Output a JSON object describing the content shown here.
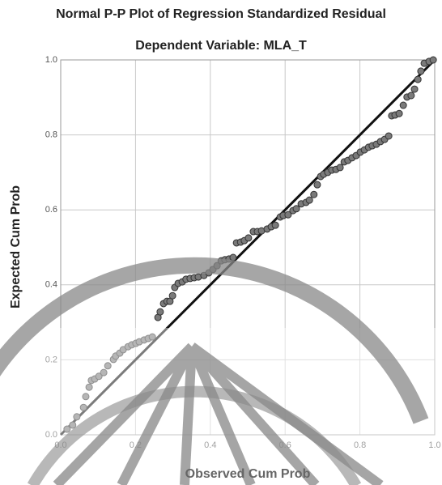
{
  "chart_data": {
    "type": "scatter",
    "title": "Normal P-P Plot of Regression Standardized Residual",
    "subtitle": "Dependent Variable: MLA_T",
    "x_label": "Observed Cum Prob",
    "y_label": "Expected Cum Prob",
    "xlim": [
      0,
      1
    ],
    "ylim": [
      0,
      1
    ],
    "xticks": [
      {
        "value": 0,
        "label": "0.0"
      },
      {
        "value": 0.2,
        "label": "0.2"
      },
      {
        "value": 0.4,
        "label": "0.4"
      },
      {
        "value": 0.6,
        "label": "0.6"
      },
      {
        "value": 0.8,
        "label": "0.8"
      },
      {
        "value": 1,
        "label": "1.0"
      }
    ],
    "yticks": [
      {
        "value": 0,
        "label": "0.0"
      },
      {
        "value": 0.2,
        "label": "0.2"
      },
      {
        "value": 0.4,
        "label": "0.4"
      },
      {
        "value": 0.6,
        "label": "0.6"
      },
      {
        "value": 0.8,
        "label": "0.8"
      },
      {
        "value": 1,
        "label": "1.0"
      }
    ],
    "grid": true,
    "color": "#7a7a7a",
    "reference_line": {
      "x": [
        0,
        1
      ],
      "y": [
        0,
        1
      ],
      "color": "#111111"
    },
    "x": [
      0.017,
      0.032,
      0.043,
      0.061,
      0.067,
      0.076,
      0.082,
      0.091,
      0.102,
      0.115,
      0.126,
      0.141,
      0.147,
      0.158,
      0.167,
      0.18,
      0.19,
      0.201,
      0.21,
      0.223,
      0.234,
      0.245,
      0.26,
      0.266,
      0.275,
      0.284,
      0.292,
      0.299,
      0.305,
      0.314,
      0.325,
      0.335,
      0.346,
      0.357,
      0.368,
      0.383,
      0.396,
      0.407,
      0.418,
      0.429,
      0.439,
      0.45,
      0.461,
      0.47,
      0.481,
      0.491,
      0.502,
      0.515,
      0.526,
      0.537,
      0.552,
      0.563,
      0.574,
      0.587,
      0.595,
      0.608,
      0.621,
      0.63,
      0.643,
      0.656,
      0.665,
      0.677,
      0.686,
      0.695,
      0.703,
      0.714,
      0.725,
      0.736,
      0.747,
      0.758,
      0.768,
      0.779,
      0.79,
      0.801,
      0.812,
      0.823,
      0.833,
      0.844,
      0.855,
      0.866,
      0.877,
      0.885,
      0.894,
      0.905,
      0.916,
      0.926,
      0.937,
      0.946,
      0.955,
      0.963,
      0.972,
      0.985,
      0.996
    ],
    "values": [
      0.015,
      0.026,
      0.048,
      0.073,
      0.102,
      0.127,
      0.145,
      0.149,
      0.156,
      0.166,
      0.184,
      0.201,
      0.21,
      0.218,
      0.227,
      0.235,
      0.24,
      0.244,
      0.248,
      0.253,
      0.257,
      0.261,
      0.313,
      0.328,
      0.35,
      0.356,
      0.356,
      0.371,
      0.393,
      0.404,
      0.408,
      0.415,
      0.417,
      0.419,
      0.421,
      0.425,
      0.432,
      0.441,
      0.451,
      0.464,
      0.467,
      0.469,
      0.473,
      0.512,
      0.514,
      0.518,
      0.525,
      0.542,
      0.542,
      0.544,
      0.549,
      0.555,
      0.559,
      0.581,
      0.585,
      0.587,
      0.598,
      0.603,
      0.616,
      0.62,
      0.626,
      0.641,
      0.667,
      0.689,
      0.695,
      0.7,
      0.706,
      0.708,
      0.713,
      0.728,
      0.732,
      0.739,
      0.745,
      0.754,
      0.76,
      0.767,
      0.771,
      0.775,
      0.782,
      0.788,
      0.797,
      0.851,
      0.853,
      0.857,
      0.879,
      0.901,
      0.905,
      0.922,
      0.948,
      0.97,
      0.991,
      0.996,
      1.0
    ]
  }
}
